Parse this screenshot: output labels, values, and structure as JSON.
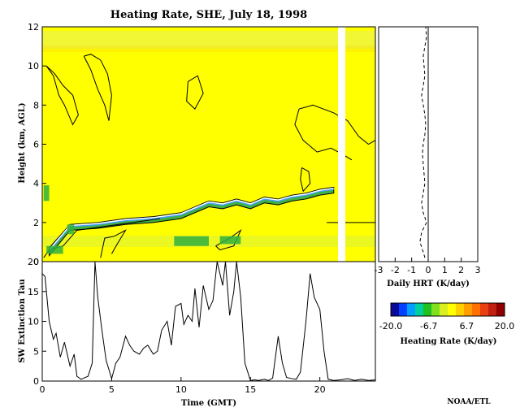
{
  "chart_data": [
    {
      "type": "heatmap",
      "panel": "main",
      "title": "Heating Rate, SHE, July 18, 1998",
      "xlabel": "",
      "ylabel": "Height (km, AGL)",
      "xlim": [
        0,
        24
      ],
      "ylim": [
        0,
        12
      ],
      "yticks": [
        0,
        2,
        4,
        6,
        8,
        10,
        12
      ],
      "background_level_K_per_day": 0,
      "no_data_columns_gmt": [
        [
          21.0,
          21.5
        ]
      ],
      "warm_band_heights_km": [
        [
          10.8,
          11.6
        ]
      ],
      "cloud_layer_km": {
        "x": [
          0.5,
          2,
          4,
          6,
          8,
          10,
          12,
          13,
          14,
          15,
          16,
          17,
          18,
          19,
          20,
          21
        ],
        "base": [
          0.3,
          1.6,
          1.7,
          1.9,
          2.0,
          2.2,
          2.8,
          2.7,
          2.9,
          2.7,
          3.0,
          2.9,
          3.1,
          3.2,
          3.4,
          3.5
        ],
        "top": [
          0.7,
          1.9,
          2.0,
          2.2,
          2.3,
          2.5,
          3.1,
          3.0,
          3.2,
          3.0,
          3.3,
          3.2,
          3.4,
          3.5,
          3.7,
          3.8
        ]
      }
    },
    {
      "type": "line",
      "panel": "profile",
      "xlabel": "Daily HRT (K/day)",
      "xlim": [
        -3,
        3
      ],
      "xticks": [
        -3,
        -2,
        -1,
        0,
        1,
        2,
        3
      ],
      "ylim": [
        0,
        12
      ],
      "x": [
        -0.2,
        -0.3,
        -0.5,
        -0.4,
        -0.1,
        -0.3,
        -0.4,
        -0.3,
        -0.2,
        -0.25,
        -0.3,
        -0.35,
        -0.3,
        -0.2,
        -0.15,
        -0.2,
        -0.3,
        -0.4,
        -0.3,
        -0.2,
        -0.25,
        -0.3,
        -0.2,
        -0.1,
        -0.15
      ],
      "y": [
        0.2,
        0.5,
        1.0,
        1.5,
        2.0,
        2.5,
        3.0,
        3.5,
        4.0,
        4.5,
        5.0,
        5.5,
        6.0,
        6.5,
        7.0,
        7.5,
        8.0,
        8.5,
        9.0,
        9.5,
        10.0,
        10.5,
        11.0,
        11.5,
        12.0
      ]
    },
    {
      "type": "line",
      "panel": "tau",
      "xlabel": "Time (GMT)",
      "ylabel": "SW Extinction Tau",
      "xlim": [
        0,
        24
      ],
      "ylim": [
        0,
        20
      ],
      "xticks": [
        0,
        5,
        10,
        15,
        20
      ],
      "yticks": [
        0,
        5,
        10,
        15,
        20
      ],
      "x": [
        0.0,
        0.2,
        0.5,
        0.8,
        1.0,
        1.3,
        1.6,
        2.0,
        2.3,
        2.5,
        2.8,
        3.0,
        3.3,
        3.6,
        3.8,
        4.0,
        4.3,
        4.6,
        5.0,
        5.3,
        5.6,
        6.0,
        6.3,
        6.6,
        7.0,
        7.3,
        7.6,
        8.0,
        8.3,
        8.6,
        9.0,
        9.3,
        9.6,
        10.0,
        10.2,
        10.5,
        10.8,
        11.0,
        11.3,
        11.6,
        12.0,
        12.3,
        12.6,
        13.0,
        13.2,
        13.5,
        13.8,
        14.0,
        14.3,
        14.6,
        15.0,
        15.3,
        15.6,
        16.0,
        16.3,
        16.6,
        17.0,
        17.3,
        17.6,
        18.0,
        18.3,
        18.6,
        19.0,
        19.3,
        19.6,
        20.0,
        20.3,
        20.6,
        21.0,
        21.5,
        22.0,
        22.5,
        23.0,
        23.5,
        24.0
      ],
      "y": [
        18.0,
        17.5,
        10.0,
        7.0,
        8.0,
        4.0,
        6.5,
        2.5,
        4.5,
        0.8,
        0.3,
        0.5,
        0.8,
        3.0,
        20.0,
        14.0,
        8.5,
        3.5,
        0.4,
        3.0,
        4.0,
        7.5,
        6.0,
        5.0,
        4.5,
        5.5,
        6.0,
        4.5,
        5.0,
        8.5,
        10.0,
        6.0,
        12.5,
        13.0,
        9.5,
        11.0,
        10.0,
        15.5,
        9.0,
        16.0,
        12.0,
        13.5,
        20.0,
        16.0,
        22.0,
        11.0,
        15.0,
        20.0,
        14.0,
        3.0,
        0.1,
        0.2,
        0.1,
        0.3,
        0.1,
        0.5,
        7.5,
        3.0,
        0.6,
        0.4,
        0.3,
        1.5,
        10.0,
        18.0,
        14.0,
        12.0,
        5.0,
        0.3,
        0.1,
        0.2,
        0.4,
        0.1,
        0.3,
        0.1,
        0.2
      ]
    }
  ],
  "colorbar": {
    "label": "Heating Rate (K/day)",
    "min": -20.0,
    "max": 20.0,
    "tick_labels": [
      "-20.0",
      "-6.7",
      "6.7",
      "20.0"
    ],
    "colors": [
      "#0a0a9a",
      "#0040ff",
      "#00a0ff",
      "#00d0a0",
      "#20c020",
      "#80e020",
      "#d8f020",
      "#ffff00",
      "#ffd000",
      "#ffa000",
      "#ff7000",
      "#e84010",
      "#c02010",
      "#900000"
    ]
  },
  "footer": {
    "credit": "NOAA/ETL"
  }
}
